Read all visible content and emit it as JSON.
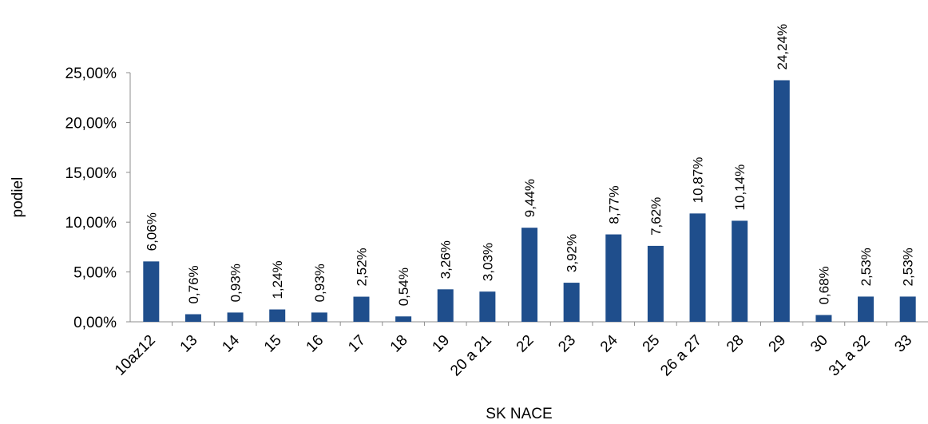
{
  "chart_data": {
    "type": "bar",
    "categories": [
      "10az12",
      "13",
      "14",
      "15",
      "16",
      "17",
      "18",
      "19",
      "20 a 21",
      "22",
      "23",
      "24",
      "25",
      "26 a 27",
      "28",
      "29",
      "30",
      "31 a 32",
      "33"
    ],
    "values": [
      6.06,
      0.76,
      0.93,
      1.24,
      0.93,
      2.52,
      0.54,
      3.26,
      3.03,
      9.44,
      3.92,
      8.77,
      7.62,
      10.87,
      10.14,
      24.24,
      0.68,
      2.53,
      2.53
    ],
    "data_labels": [
      "6,06%",
      "0,76%",
      "0,93%",
      "1,24%",
      "0,93%",
      "2,52%",
      "0,54%",
      "3,26%",
      "3,03%",
      "9,44%",
      "3,92%",
      "8,77%",
      "7,62%",
      "10,87%",
      "10,14%",
      "24,24%",
      "0,68%",
      "2,53%",
      "2,53%"
    ],
    "y_ticks": [
      0,
      5,
      10,
      15,
      20,
      25
    ],
    "y_tick_labels": [
      "0,00%",
      "5,00%",
      "10,00%",
      "15,00%",
      "20,00%",
      "25,00%"
    ],
    "xlabel": "SK NACE",
    "ylabel": "podiel",
    "ylim": [
      0,
      25
    ],
    "grid": false,
    "legend": "none",
    "bar_color": "#1f4e8c"
  }
}
